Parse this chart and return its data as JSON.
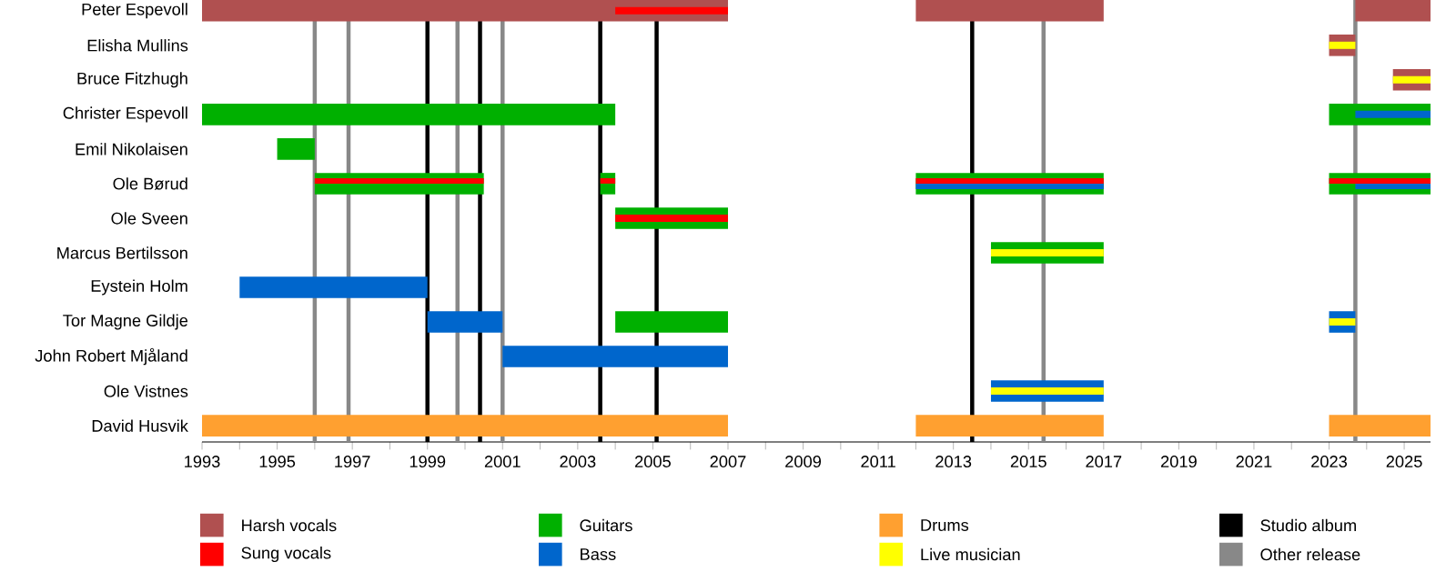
{
  "chart_data": {
    "type": "bar",
    "orientation": "horizontal",
    "legend": "bottom",
    "categories": [
      "Peter Espevoll",
      "Elisha Mullins",
      "Bruce Fitzhugh",
      "Christer Espevoll",
      "Emil Nikolaisen",
      "Ole Børud",
      "Ole Sveen",
      "Marcus Bertilsson",
      "Eystein Holm",
      "Tor Magne Gildje",
      "John Robert Mjåland",
      "Ole Vistnes",
      "David Husvik"
    ],
    "xlim": [
      1993,
      2025.7
    ],
    "xticks": [
      1993,
      1995,
      1997,
      1999,
      2001,
      2003,
      2005,
      2007,
      2009,
      2011,
      2013,
      2015,
      2017,
      2019,
      2021,
      2023,
      2025
    ],
    "series": [
      {
        "name": "Harsh vocals",
        "color": "#b05050",
        "base": [
          1993,
          2023,
          2024.7,
          null,
          null,
          null,
          null,
          null,
          null,
          null,
          null,
          null,
          null
        ],
        "values": [
          14,
          0.7,
          1.0,
          null,
          null,
          null,
          null,
          null,
          null,
          null,
          null,
          null,
          null
        ]
      },
      {
        "name": "Sung vocals",
        "color": "#ff0000",
        "base": [
          2004,
          null,
          null,
          null,
          null,
          null,
          null,
          null,
          null,
          null,
          null,
          null,
          null
        ],
        "values": [
          3,
          null,
          null,
          null,
          null,
          null,
          null,
          null,
          null,
          null,
          null,
          null,
          null
        ]
      },
      {
        "name": "Guitars",
        "color": "#00b000",
        "base": [
          null,
          null,
          null,
          1993,
          1995,
          1996,
          2004,
          2014,
          null,
          2004,
          null,
          null,
          null
        ],
        "values": [
          null,
          null,
          null,
          11,
          1,
          4.5,
          3,
          3,
          null,
          3,
          null,
          null,
          null
        ]
      },
      {
        "name": "Bass",
        "color": "#0066cc",
        "base": [
          null,
          null,
          null,
          2023.7,
          null,
          null,
          null,
          null,
          1994,
          1999,
          2001,
          2014,
          null
        ],
        "values": [
          null,
          null,
          null,
          2.0,
          null,
          null,
          null,
          null,
          5,
          2,
          6,
          3,
          null
        ]
      },
      {
        "name": "Drums",
        "color": "#ffa030",
        "base": [
          null,
          null,
          null,
          null,
          null,
          null,
          null,
          null,
          null,
          null,
          null,
          null,
          1993
        ],
        "values": [
          null,
          null,
          null,
          null,
          null,
          null,
          null,
          null,
          null,
          null,
          null,
          null,
          14
        ]
      },
      {
        "name": "Live musician",
        "color": "#ffff00",
        "base": [
          null,
          2023,
          2024.7,
          null,
          null,
          null,
          null,
          2014,
          null,
          null,
          null,
          2014,
          null
        ],
        "values": [
          null,
          0.7,
          1.0,
          null,
          null,
          null,
          null,
          3,
          null,
          null,
          null,
          3,
          null
        ]
      },
      {
        "color": "#b05050",
        "base": [
          2012,
          null,
          null,
          null,
          null,
          null,
          null,
          null,
          null,
          null,
          null,
          null,
          null
        ],
        "values": [
          5,
          null,
          null,
          null,
          null,
          null,
          null,
          null,
          null,
          null,
          null,
          null,
          null
        ]
      },
      {
        "color": "#b05050",
        "base": [
          2023.7,
          null,
          null,
          null,
          null,
          null,
          null,
          null,
          null,
          null,
          null,
          null,
          null
        ],
        "values": [
          2.0,
          null,
          null,
          null,
          null,
          null,
          null,
          null,
          null,
          null,
          null,
          null,
          null
        ]
      },
      {
        "color": "#00b000",
        "base": [
          null,
          null,
          null,
          2023,
          null,
          2003.6,
          null,
          null,
          null,
          null,
          null,
          null,
          null
        ],
        "values": [
          null,
          null,
          null,
          2.7,
          null,
          0.4,
          null,
          null,
          null,
          null,
          null,
          null,
          null
        ]
      },
      {
        "color": "#00b000",
        "base": [
          null,
          null,
          null,
          null,
          null,
          2012,
          null,
          null,
          null,
          null,
          null,
          null,
          null
        ],
        "values": [
          null,
          null,
          null,
          null,
          null,
          5,
          null,
          null,
          null,
          null,
          null,
          null,
          null
        ]
      },
      {
        "color": "#00b000",
        "base": [
          null,
          null,
          null,
          null,
          null,
          2023,
          null,
          null,
          null,
          null,
          null,
          null,
          null
        ],
        "values": [
          null,
          null,
          null,
          null,
          null,
          2.7,
          null,
          null,
          null,
          null,
          null,
          null,
          null
        ]
      },
      {
        "color": "#0066cc",
        "base": [
          null,
          null,
          null,
          null,
          null,
          2012,
          null,
          null,
          null,
          2023,
          null,
          null,
          null
        ],
        "values": [
          null,
          null,
          null,
          null,
          null,
          5,
          null,
          null,
          null,
          0.7,
          null,
          null,
          null
        ]
      },
      {
        "color": "#0066cc",
        "base": [
          null,
          null,
          null,
          null,
          null,
          2023.7,
          null,
          null,
          null,
          null,
          null,
          null,
          null
        ],
        "values": [
          null,
          null,
          null,
          null,
          null,
          2.0,
          null,
          null,
          null,
          null,
          null,
          null,
          null
        ]
      },
      {
        "color": "#ffa030",
        "base": [
          null,
          null,
          null,
          null,
          null,
          null,
          null,
          null,
          null,
          null,
          null,
          null,
          2012
        ],
        "values": [
          null,
          null,
          null,
          null,
          null,
          null,
          null,
          null,
          null,
          null,
          null,
          null,
          5
        ]
      },
      {
        "color": "#ffa030",
        "base": [
          null,
          null,
          null,
          null,
          null,
          null,
          null,
          null,
          null,
          null,
          null,
          null,
          2023
        ],
        "values": [
          null,
          null,
          null,
          null,
          null,
          null,
          null,
          null,
          null,
          null,
          null,
          null,
          2.7
        ]
      },
      {
        "color": "#ff0000",
        "base": [
          null,
          null,
          null,
          null,
          null,
          1996,
          2004,
          null,
          null,
          null,
          null,
          null,
          null
        ],
        "values": [
          null,
          null,
          null,
          null,
          null,
          4.5,
          3,
          null,
          null,
          null,
          null,
          null,
          null
        ]
      },
      {
        "color": "#ff0000",
        "base": [
          null,
          null,
          null,
          null,
          null,
          2003.6,
          null,
          null,
          null,
          null,
          null,
          null,
          null
        ],
        "values": [
          null,
          null,
          null,
          null,
          null,
          0.4,
          null,
          null,
          null,
          null,
          null,
          null,
          null
        ]
      },
      {
        "color": "#ff0000",
        "base": [
          null,
          null,
          null,
          null,
          null,
          2012,
          null,
          null,
          null,
          null,
          null,
          null,
          null
        ],
        "values": [
          null,
          null,
          null,
          null,
          null,
          5,
          null,
          null,
          null,
          null,
          null,
          null,
          null
        ]
      },
      {
        "color": "#ff0000",
        "base": [
          null,
          null,
          null,
          null,
          null,
          2023,
          null,
          null,
          null,
          null,
          null,
          null,
          null
        ],
        "values": [
          null,
          null,
          null,
          null,
          null,
          2.7,
          null,
          null,
          null,
          null,
          null,
          null,
          null
        ]
      },
      {
        "color": "#ffff00",
        "base": [
          null,
          null,
          null,
          null,
          null,
          null,
          null,
          null,
          null,
          2023,
          null,
          null,
          null
        ],
        "values": [
          null,
          null,
          null,
          null,
          null,
          null,
          null,
          null,
          null,
          0.7,
          null,
          null,
          null
        ]
      }
    ],
    "ref_lines": [
      {
        "axis": "x",
        "value": 1999,
        "label": "Studio album",
        "color": "#000000"
      },
      {
        "axis": "x",
        "value": 1996,
        "label": "Other release",
        "color": "#888888"
      },
      {
        "axis": "x",
        "value": 2000.4,
        "color": "#000000"
      },
      {
        "axis": "x",
        "value": 2003.6,
        "color": "#000000"
      },
      {
        "axis": "x",
        "value": 2005.1,
        "color": "#000000"
      },
      {
        "axis": "x",
        "value": 2013.5,
        "color": "#000000"
      },
      {
        "axis": "x",
        "value": 1996.9,
        "color": "#888888"
      },
      {
        "axis": "x",
        "value": 1999.8,
        "color": "#888888"
      },
      {
        "axis": "x",
        "value": 2001,
        "color": "#888888"
      },
      {
        "axis": "x",
        "value": 2015.4,
        "color": "#888888"
      },
      {
        "axis": "x",
        "value": 2023.7,
        "color": "#888888"
      }
    ]
  }
}
